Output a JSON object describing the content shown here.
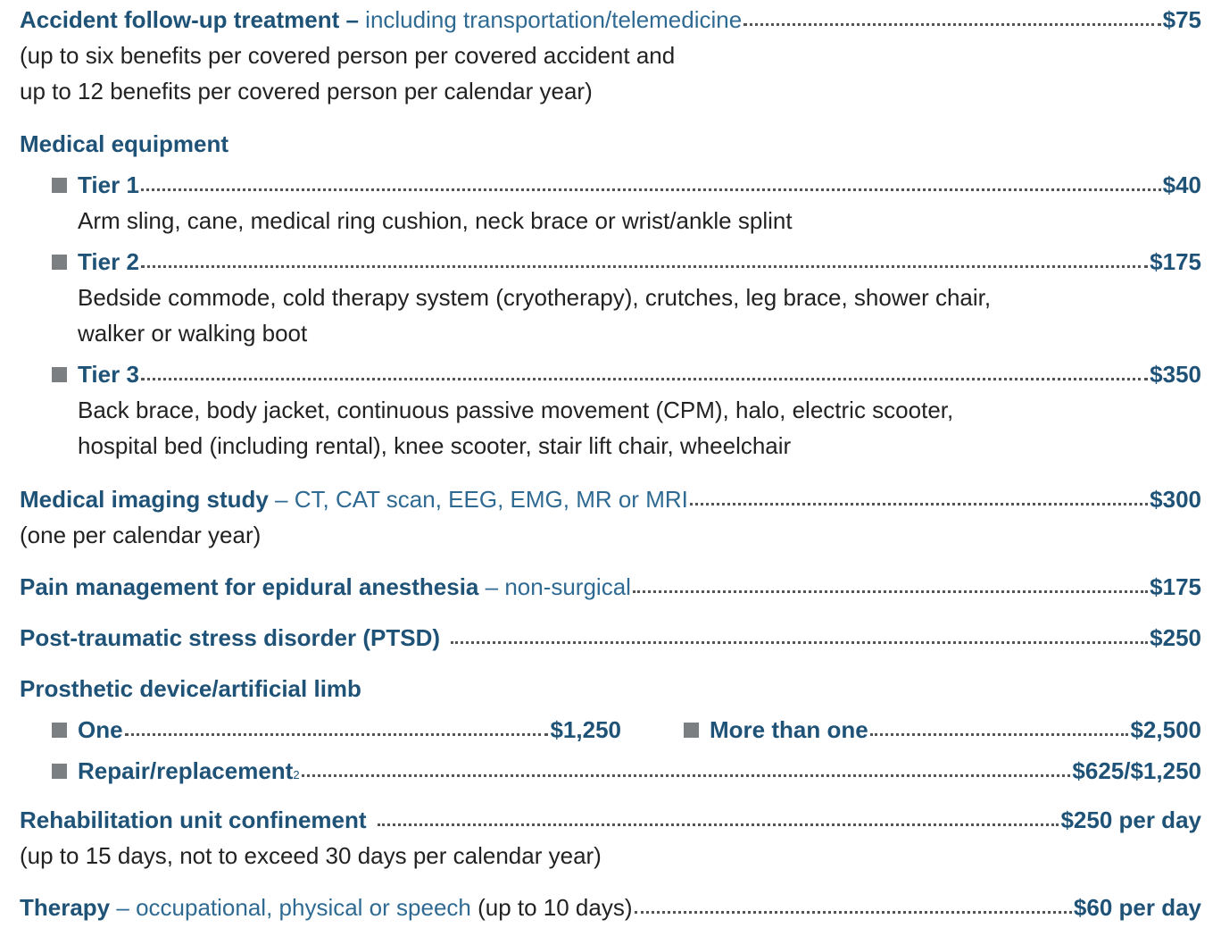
{
  "accident": {
    "title": "Accident follow-up treatment",
    "dash": " – ",
    "detail": "including transportation/telemedicine",
    "amount": "$75",
    "note1": "(up to six benefits per covered person per covered accident and",
    "note2": "up to 12 benefits per covered person per calendar year)"
  },
  "equipment": {
    "heading": "Medical equipment",
    "tiers": [
      {
        "label": "Tier 1",
        "amount": "$40",
        "desc": [
          "Arm sling, cane, medical ring cushion, neck brace or wrist/ankle splint"
        ]
      },
      {
        "label": "Tier 2",
        "amount": "$175",
        "desc": [
          "Bedside commode, cold therapy system (cryotherapy), crutches, leg brace, shower chair,",
          "walker or walking boot"
        ]
      },
      {
        "label": "Tier 3",
        "amount": "$350",
        "desc": [
          "Back brace, body jacket, continuous passive movement (CPM), halo, electric scooter,",
          "hospital bed (including rental), knee scooter, stair lift chair, wheelchair"
        ]
      }
    ]
  },
  "imaging": {
    "title": "Medical imaging study",
    "dash": " – ",
    "detail": "CT, CAT scan, EEG, EMG, MR or MRI",
    "amount": "$300",
    "note": "(one per calendar year)"
  },
  "pain": {
    "title": "Pain management for epidural anesthesia",
    "dash": " – ",
    "detail": "non-surgical",
    "amount": "$175"
  },
  "ptsd": {
    "title": "Post-traumatic stress disorder (PTSD)",
    "amount": "$250"
  },
  "prosthetic": {
    "heading": "Prosthetic device/artificial limb",
    "one_label": "One",
    "one_amount": "$1,250",
    "more_label": "More than one",
    "more_amount": "$2,500",
    "repair_label": "Repair/replacement",
    "repair_footnote": "2",
    "repair_amount": "$625/$1,250"
  },
  "rehab": {
    "title": "Rehabilitation unit confinement",
    "amount": "$250 per day",
    "note": "(up to 15 days, not to exceed 30 days per calendar year)"
  },
  "therapy": {
    "title": "Therapy",
    "dash": " – ",
    "detail": "occupational, physical or speech",
    "paren": " (up to 10 days)",
    "amount": "$60 per day"
  },
  "colors": {
    "heading_blue": "#1f5277",
    "detail_blue": "#2f6a93",
    "bullet_gray": "#7c7f82",
    "body_text": "#222222"
  }
}
